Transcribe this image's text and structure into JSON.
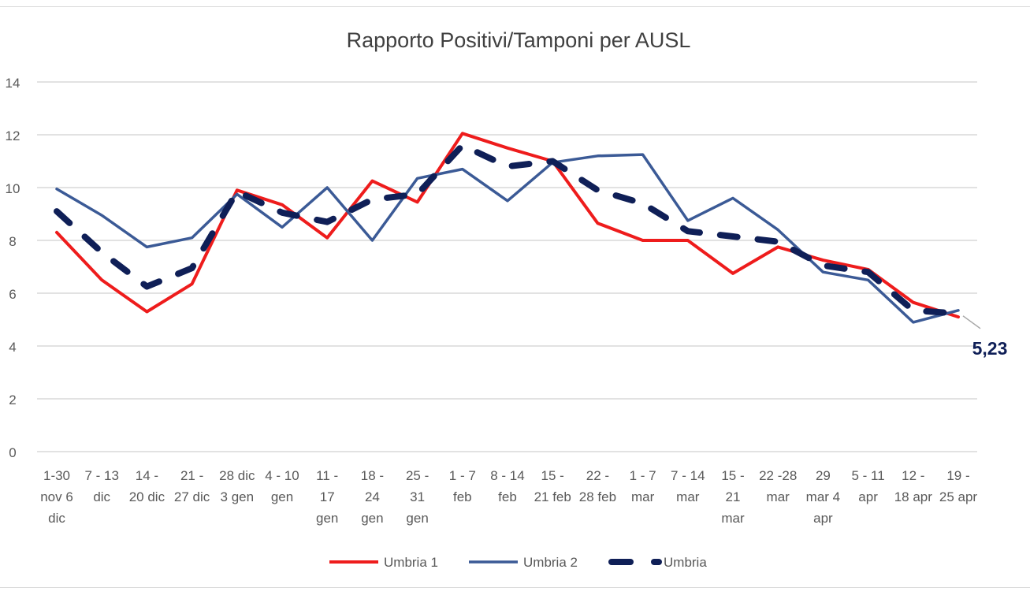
{
  "chart_data": {
    "type": "line",
    "title": "Rapporto Positivi/Tamponi per AUSL",
    "xlabel": "",
    "ylabel": "",
    "ylim": [
      0,
      14
    ],
    "yticks": [
      0,
      2,
      4,
      6,
      8,
      10,
      12,
      14
    ],
    "grid": true,
    "legend_position": "bottom",
    "categories": [
      [
        "1-30",
        "nov 6",
        "dic"
      ],
      [
        "7 - 13",
        "dic"
      ],
      [
        "14 -",
        "20 dic"
      ],
      [
        "21 -",
        "27 dic"
      ],
      [
        "28 dic",
        "3 gen"
      ],
      [
        "4 - 10",
        "gen"
      ],
      [
        "11 -",
        "17",
        "gen"
      ],
      [
        "18 -",
        "24",
        "gen"
      ],
      [
        "25 -",
        "31",
        "gen"
      ],
      [
        "1 - 7",
        "feb"
      ],
      [
        "8 - 14",
        "feb"
      ],
      [
        "15 -",
        "21 feb"
      ],
      [
        "22 -",
        "28 feb"
      ],
      [
        "1 - 7",
        "mar"
      ],
      [
        "7 - 14",
        "mar"
      ],
      [
        "15 -",
        "21",
        "mar"
      ],
      [
        "22 -28",
        "mar"
      ],
      [
        "29",
        "mar 4",
        "apr"
      ],
      [
        "5 - 11",
        "apr"
      ],
      [
        "12 -",
        "18 apr"
      ],
      [
        "19 -",
        "25 apr"
      ]
    ],
    "series": [
      {
        "name": "Umbria 1",
        "color": "#ee1c1c",
        "style": "solid",
        "values": [
          8.3,
          6.5,
          5.3,
          6.35,
          9.9,
          9.35,
          8.1,
          10.25,
          9.45,
          12.05,
          11.5,
          11.0,
          8.65,
          8.0,
          8.0,
          6.75,
          7.75,
          7.25,
          6.9,
          5.65,
          5.1
        ]
      },
      {
        "name": "Umbria 2",
        "color": "#3b5a96",
        "style": "solid",
        "values": [
          9.95,
          8.95,
          7.75,
          8.1,
          9.75,
          8.5,
          10.0,
          8.0,
          10.35,
          10.7,
          9.5,
          10.95,
          11.2,
          11.25,
          8.75,
          9.6,
          8.4,
          6.8,
          6.5,
          4.9,
          5.35
        ]
      },
      {
        "name": "Umbria",
        "color": "#0f1f57",
        "style": "dashed",
        "values": [
          9.1,
          7.55,
          6.25,
          6.95,
          9.85,
          9.05,
          8.7,
          9.55,
          9.75,
          11.6,
          10.8,
          11.0,
          9.9,
          9.4,
          8.35,
          8.15,
          7.95,
          7.05,
          6.8,
          5.35,
          5.23
        ]
      }
    ],
    "annotations": [
      {
        "text": "5,23",
        "series": "Umbria",
        "index": 20,
        "color": "#0f1f57"
      }
    ]
  }
}
